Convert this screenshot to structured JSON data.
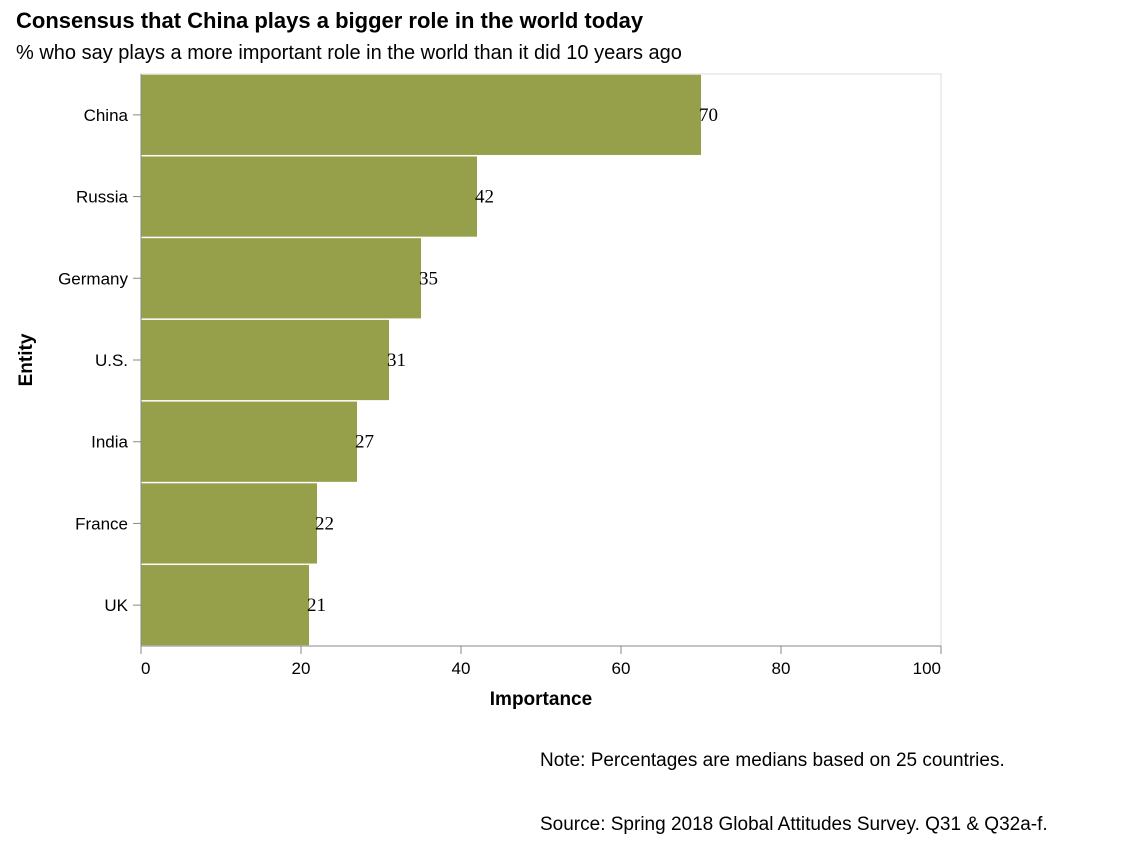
{
  "title": "Consensus that China plays a bigger role in the world today",
  "subtitle": "% who say plays a more important role in the world than it did 10 years ago",
  "note": "Note: Percentages are medians based on 25 countries.",
  "source": "Source: Spring 2018 Global Attitudes Survey. Q31 & Q32a-f.",
  "colors": {
    "bar": "#969f4a",
    "axis": "#888888",
    "frame": "#dddddd"
  },
  "chart_data": {
    "type": "bar",
    "orientation": "horizontal",
    "categories": [
      "China",
      "Russia",
      "Germany",
      "U.S.",
      "India",
      "France",
      "UK"
    ],
    "values": [
      70,
      42,
      35,
      31,
      27,
      22,
      21
    ],
    "xlabel": "Importance",
    "ylabel": "Entity",
    "xlim": [
      0,
      100
    ],
    "xticks": [
      0,
      20,
      40,
      60,
      80,
      100
    ],
    "grid": false,
    "legend": "none"
  }
}
